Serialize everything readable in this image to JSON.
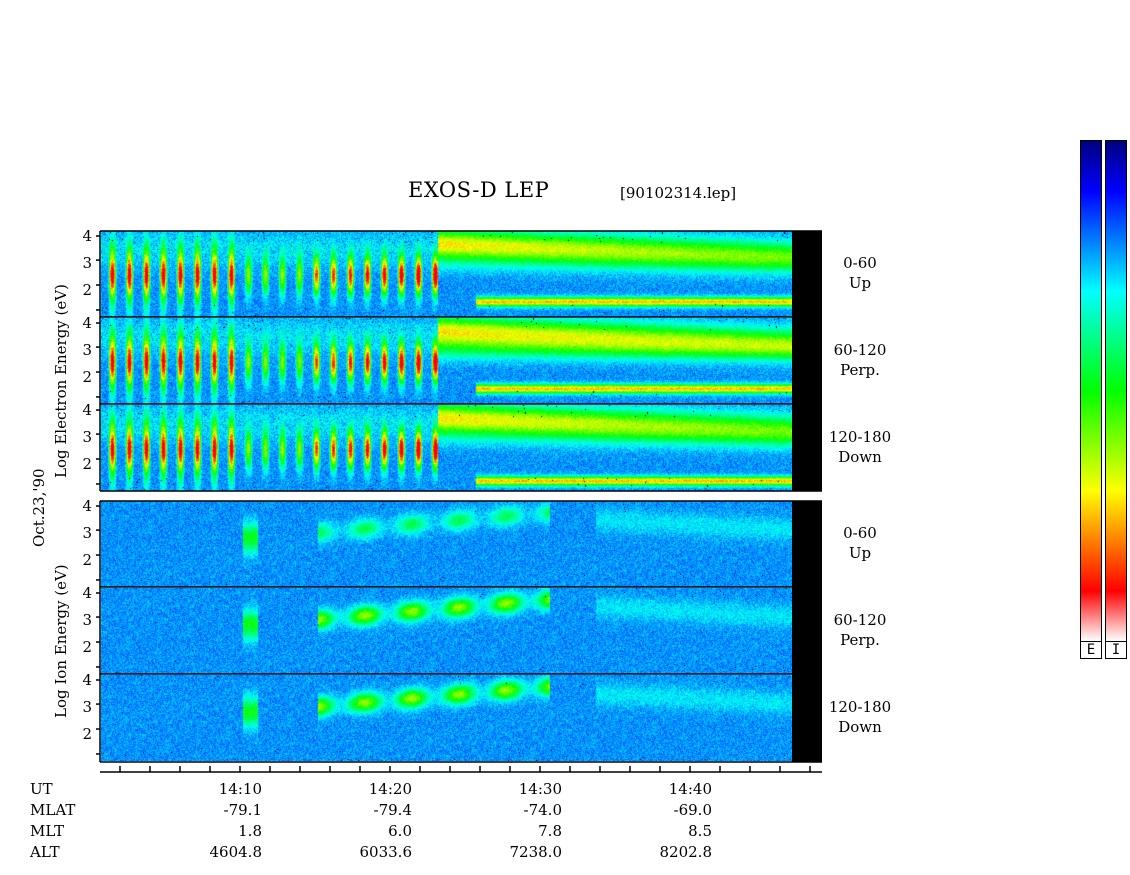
{
  "header": {
    "title": "EXOS-D LEP",
    "file_label": "[90102314.lep]"
  },
  "date_label": "Oct.23,'90",
  "electron_ylabel": "Log  Electron  Energy  (eV)",
  "ion_ylabel": "Log  Ion  Energy  (eV)",
  "y_ticks": [
    "4",
    "3",
    "2",
    "1"
  ],
  "panels": [
    {
      "species": "electron",
      "pitch": "0-60",
      "dir": "Up"
    },
    {
      "species": "electron",
      "pitch": "60-120",
      "dir": "Perp."
    },
    {
      "species": "electron",
      "pitch": "120-180",
      "dir": "Down"
    },
    {
      "species": "ion",
      "pitch": "0-60",
      "dir": "Up"
    },
    {
      "species": "ion",
      "pitch": "60-120",
      "dir": "Perp."
    },
    {
      "species": "ion",
      "pitch": "120-180",
      "dir": "Down"
    }
  ],
  "orbit": {
    "row_labels": [
      "UT",
      "MLAT",
      "MLT",
      "ALT"
    ],
    "columns": [
      {
        "UT": "14:10",
        "MLAT": "-79.1",
        "MLT": "1.8",
        "ALT": "4604.8"
      },
      {
        "UT": "14:20",
        "MLAT": "-79.4",
        "MLT": "6.0",
        "ALT": "6033.6"
      },
      {
        "UT": "14:30",
        "MLAT": "-74.0",
        "MLT": "7.8",
        "ALT": "7238.0"
      },
      {
        "UT": "14:40",
        "MLAT": "-69.0",
        "MLT": "8.5",
        "ALT": "8202.8"
      }
    ]
  },
  "colorbar": {
    "labels": [
      "E",
      "I"
    ],
    "colors_top_to_bottom": [
      "#00007f",
      "#0000ff",
      "#007fff",
      "#00ffff",
      "#00ff7f",
      "#00ff00",
      "#7fff00",
      "#ffff00",
      "#ff7f00",
      "#ff0000",
      "#ffffff"
    ]
  },
  "chart_data": {
    "type": "heatmap",
    "title": "EXOS-D LEP",
    "xlabel": "UT",
    "ylabel": "Log Energy (eV)",
    "x_ticks": [
      "14:10",
      "14:20",
      "14:30",
      "14:40"
    ],
    "ylim": [
      1,
      4
    ],
    "y_ticks": [
      1,
      2,
      3,
      4
    ],
    "grid": false,
    "series": [
      {
        "name": "Electron 0-60 Up",
        "features": [
          "dense bursts 14:03-14:25 at log E 2-3",
          "broad green/cyan band log E 3-4 after 14:25",
          "narrow intense band near log E 1.5 after 14:30"
        ]
      },
      {
        "name": "Electron 60-120 Perp.",
        "features": [
          "dense bursts 14:03-14:25",
          "cyan bands log E 3-4 after 14:25",
          "narrow band near log E 1.5 after 14:30"
        ]
      },
      {
        "name": "Electron 120-180 Down",
        "features": [
          "dense bursts 14:03-14:25",
          "green band log E 3-4 after 14:25",
          "narrow band near log E 1.2 after 14:30"
        ]
      },
      {
        "name": "Ion 0-60 Up",
        "features": [
          "weak cyan arc log E 3-4 between 14:18 and 14:30"
        ]
      },
      {
        "name": "Ion 60-120 Perp.",
        "features": [
          "cyan/green arc log E 3-3.5 between 14:17 and 14:32",
          "weak feature at 14:12"
        ]
      },
      {
        "name": "Ion 120-180 Down",
        "features": [
          "cyan/green arc log E 3 between 14:17 and 14:30",
          "weak feature at 14:12"
        ]
      }
    ]
  }
}
